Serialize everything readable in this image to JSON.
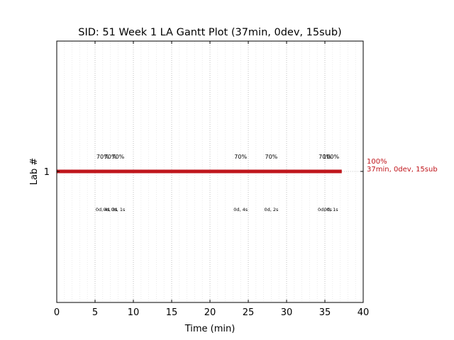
{
  "chart_data": {
    "type": "gantt",
    "title": "SID: 51 Week 1 LA Gantt Plot (37min, 0dev, 15sub)",
    "xlabel": "Time (min)",
    "ylabel": "Lab #",
    "xlim": [
      0,
      40
    ],
    "xticks": [
      0,
      5,
      10,
      15,
      20,
      25,
      30,
      35,
      40
    ],
    "xtick_labels": [
      "0",
      "5",
      "10",
      "15",
      "20",
      "25",
      "30",
      "35",
      "40"
    ],
    "minor_grid_step": 1,
    "grid": true,
    "y_categories": [
      "1"
    ],
    "bar": {
      "lab": "1",
      "start": 0,
      "end": 37.2,
      "color": "#c0161c",
      "end_label_pct": "100%",
      "end_label_summary": "37min, 0dev, 15sub"
    },
    "submissions": [
      {
        "x": 6.0,
        "score": "70%",
        "detail": "0d, 4s"
      },
      {
        "x": 7.0,
        "score": "70%",
        "detail": "0d, 3s"
      },
      {
        "x": 8.0,
        "score": "70%",
        "detail": "0d, 1s"
      },
      {
        "x": 24.0,
        "score": "70%",
        "detail": "0d, 4s"
      },
      {
        "x": 28.0,
        "score": "70%",
        "detail": "0d, 2s"
      },
      {
        "x": 35.0,
        "score": "70%",
        "detail": "0d, 0s"
      },
      {
        "x": 35.8,
        "score": "100%",
        "detail": "0d, 1s"
      }
    ]
  }
}
